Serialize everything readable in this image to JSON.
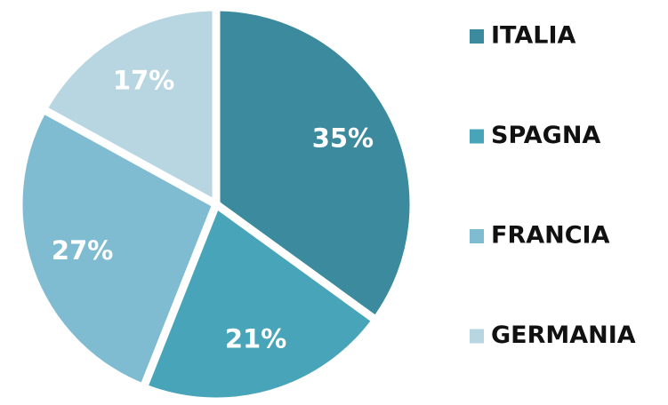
{
  "chart_data": {
    "type": "pie",
    "categories": [
      "ITALIA",
      "SPAGNA",
      "FRANCIA",
      "GERMANIA"
    ],
    "values": [
      35,
      21,
      27,
      17
    ],
    "value_labels": [
      "35%",
      "21%",
      "27%",
      "17%"
    ],
    "colors": [
      "#3b8a9d",
      "#47a4b9",
      "#7fbcd1",
      "#b8d6e1"
    ],
    "legend": "right"
  }
}
